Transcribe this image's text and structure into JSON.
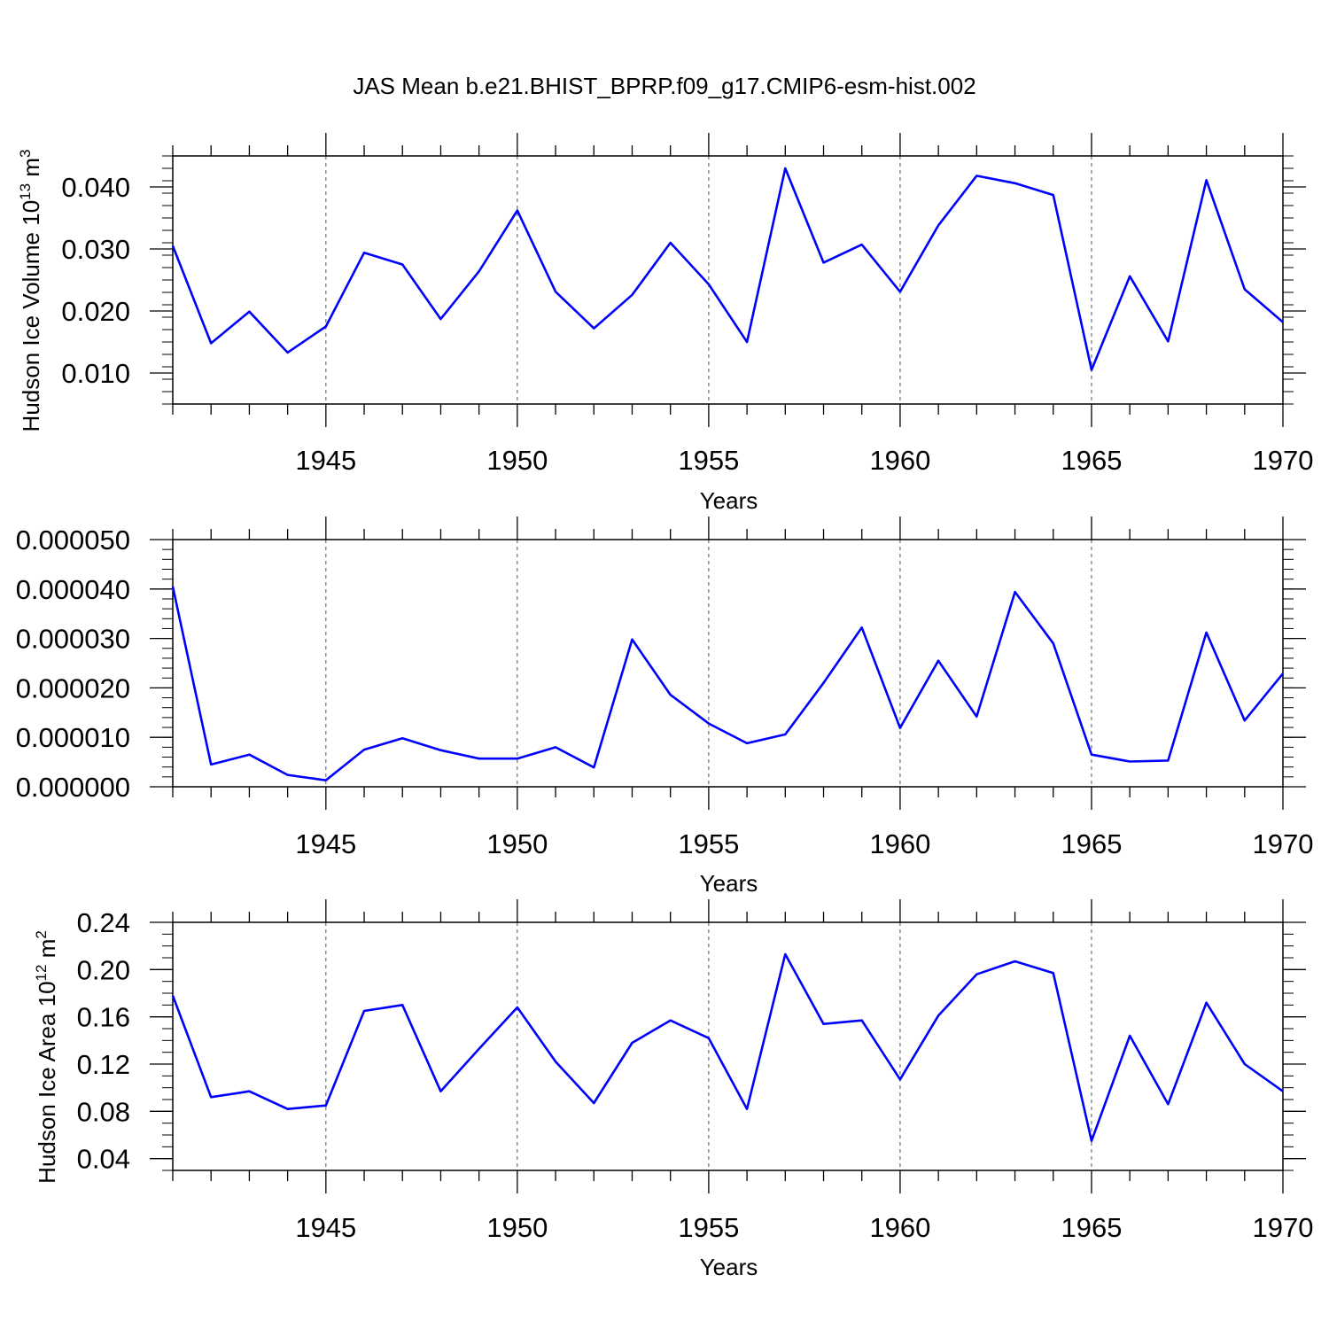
{
  "title": "JAS Mean b.e21.BHIST_BPRP.f09_g17.CMIP6-esm-hist.002",
  "chart_data": [
    {
      "type": "line",
      "title": "",
      "xlabel": "Years",
      "ylabel": "Hudson Ice Volume 10",
      "ylabel_exp": "13",
      "ylabel_unit": " m",
      "ylabel_unit_exp": "3",
      "xlim": [
        1941,
        1970
      ],
      "ylim": [
        0.005,
        0.045
      ],
      "xticks": [
        1945,
        1950,
        1955,
        1960,
        1965,
        1970
      ],
      "xtick_labels": [
        "1945",
        "1950",
        "1955",
        "1960",
        "1965",
        "1970"
      ],
      "yticks": [
        0.01,
        0.02,
        0.03,
        0.04
      ],
      "ytick_labels": [
        "0.010",
        "0.020",
        "0.030",
        "0.040"
      ],
      "y_minor_step": 0.002,
      "grid": "vertical dashed at major x ticks",
      "line_color": "#0000ff",
      "x": [
        1941,
        1942,
        1943,
        1944,
        1945,
        1946,
        1947,
        1948,
        1949,
        1950,
        1951,
        1952,
        1953,
        1954,
        1955,
        1956,
        1957,
        1958,
        1959,
        1960,
        1961,
        1962,
        1963,
        1964,
        1965,
        1966,
        1967,
        1968,
        1969,
        1970
      ],
      "values": [
        0.0305,
        0.0148,
        0.0199,
        0.0133,
        0.0175,
        0.0294,
        0.0275,
        0.0187,
        0.0264,
        0.0362,
        0.0231,
        0.0172,
        0.0226,
        0.031,
        0.0243,
        0.015,
        0.043,
        0.0278,
        0.0307,
        0.0231,
        0.0338,
        0.0418,
        0.0406,
        0.0387,
        0.0105,
        0.0256,
        0.0151,
        0.0411,
        0.0235,
        0.0182
      ]
    },
    {
      "type": "line",
      "title": "",
      "xlabel": "Years",
      "ylabel": "",
      "xlim": [
        1941,
        1970
      ],
      "ylim": [
        0.0,
        5e-05
      ],
      "xticks": [
        1945,
        1950,
        1955,
        1960,
        1965,
        1970
      ],
      "xtick_labels": [
        "1945",
        "1950",
        "1955",
        "1960",
        "1965",
        "1970"
      ],
      "yticks": [
        0.0,
        1e-05,
        2e-05,
        3e-05,
        4e-05,
        5e-05
      ],
      "ytick_labels": [
        "0.000000",
        "0.000010",
        "0.000020",
        "0.000030",
        "0.000040",
        "0.000050"
      ],
      "y_minor_step": 2e-06,
      "grid": "vertical dashed at major x ticks",
      "line_color": "#0000ff",
      "x": [
        1941,
        1942,
        1943,
        1944,
        1945,
        1946,
        1947,
        1948,
        1949,
        1950,
        1951,
        1952,
        1953,
        1954,
        1955,
        1956,
        1957,
        1958,
        1959,
        1960,
        1961,
        1962,
        1963,
        1964,
        1965,
        1966,
        1967,
        1968,
        1969,
        1970
      ],
      "values": [
        4.05e-05,
        4.5e-06,
        6.5e-06,
        2.4e-06,
        1.3e-06,
        7.5e-06,
        9.8e-06,
        7.4e-06,
        5.7e-06,
        5.7e-06,
        8e-06,
        3.9e-06,
        2.98e-05,
        1.86e-05,
        1.28e-05,
        8.8e-06,
        1.06e-05,
        2.1e-05,
        3.22e-05,
        1.19e-05,
        2.55e-05,
        1.42e-05,
        3.94e-05,
        2.9e-05,
        6.5e-06,
        5.1e-06,
        5.3e-06,
        3.12e-05,
        1.34e-05,
        2.29e-05
      ]
    },
    {
      "type": "line",
      "title": "",
      "xlabel": "Years",
      "ylabel": "Hudson Ice Area 10",
      "ylabel_exp": "12",
      "ylabel_unit": " m",
      "ylabel_unit_exp": "2",
      "xlim": [
        1941,
        1970
      ],
      "ylim": [
        0.03,
        0.24
      ],
      "xticks": [
        1945,
        1950,
        1955,
        1960,
        1965,
        1970
      ],
      "xtick_labels": [
        "1945",
        "1950",
        "1955",
        "1960",
        "1965",
        "1970"
      ],
      "yticks": [
        0.04,
        0.08,
        0.12,
        0.16,
        0.2,
        0.24
      ],
      "ytick_labels": [
        "0.04",
        "0.08",
        "0.12",
        "0.16",
        "0.20",
        "0.24"
      ],
      "y_minor_step": 0.01,
      "grid": "vertical dashed at major x ticks",
      "line_color": "#0000ff",
      "x": [
        1941,
        1942,
        1943,
        1944,
        1945,
        1946,
        1947,
        1948,
        1949,
        1950,
        1951,
        1952,
        1953,
        1954,
        1955,
        1956,
        1957,
        1958,
        1959,
        1960,
        1961,
        1962,
        1963,
        1964,
        1965,
        1966,
        1967,
        1968,
        1969,
        1970
      ],
      "values": [
        0.178,
        0.092,
        0.097,
        0.082,
        0.085,
        0.165,
        0.17,
        0.097,
        0.133,
        0.168,
        0.122,
        0.087,
        0.138,
        0.157,
        0.142,
        0.082,
        0.213,
        0.154,
        0.157,
        0.107,
        0.161,
        0.196,
        0.207,
        0.197,
        0.055,
        0.144,
        0.086,
        0.172,
        0.12,
        0.097
      ]
    }
  ]
}
